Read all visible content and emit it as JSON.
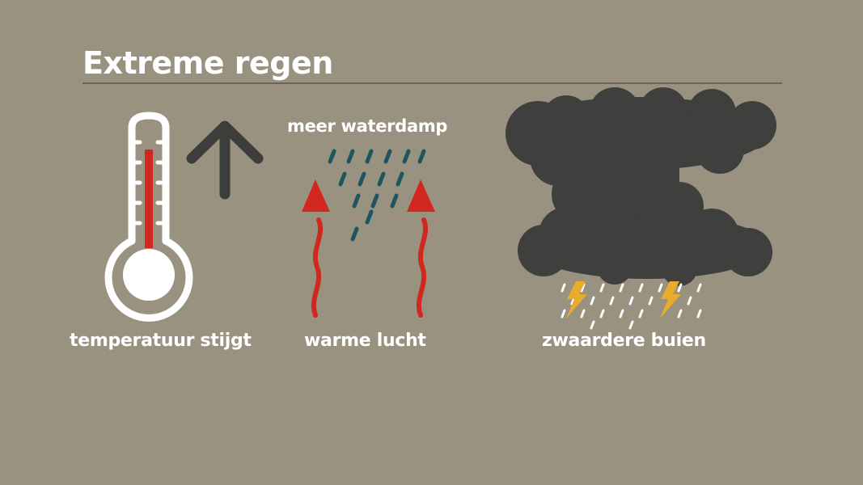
{
  "title": "Extreme regen",
  "labels": {
    "temperature": "temperatuur stijgt",
    "warm_air": "warme lucht",
    "water_vapour": "meer waterdamp",
    "showers": "zwaardere buien"
  },
  "colors": {
    "background": "#9a9280",
    "text": "#ffffff",
    "rule": "#6a6458",
    "mercury": "#d0281f",
    "up_arrow": "#3d3d3b",
    "heat_arrow": "#d0281f",
    "vapour": "#1f5560",
    "cloud": "#3f3f3d",
    "rain": "#ffffff",
    "lightning": "#e8ac2a"
  },
  "icons": [
    "thermometer-icon",
    "up-arrow-icon",
    "heat-arrow-icon",
    "water-vapour-icon",
    "storm-cloud-icon",
    "lightning-icon",
    "rain-icon"
  ]
}
